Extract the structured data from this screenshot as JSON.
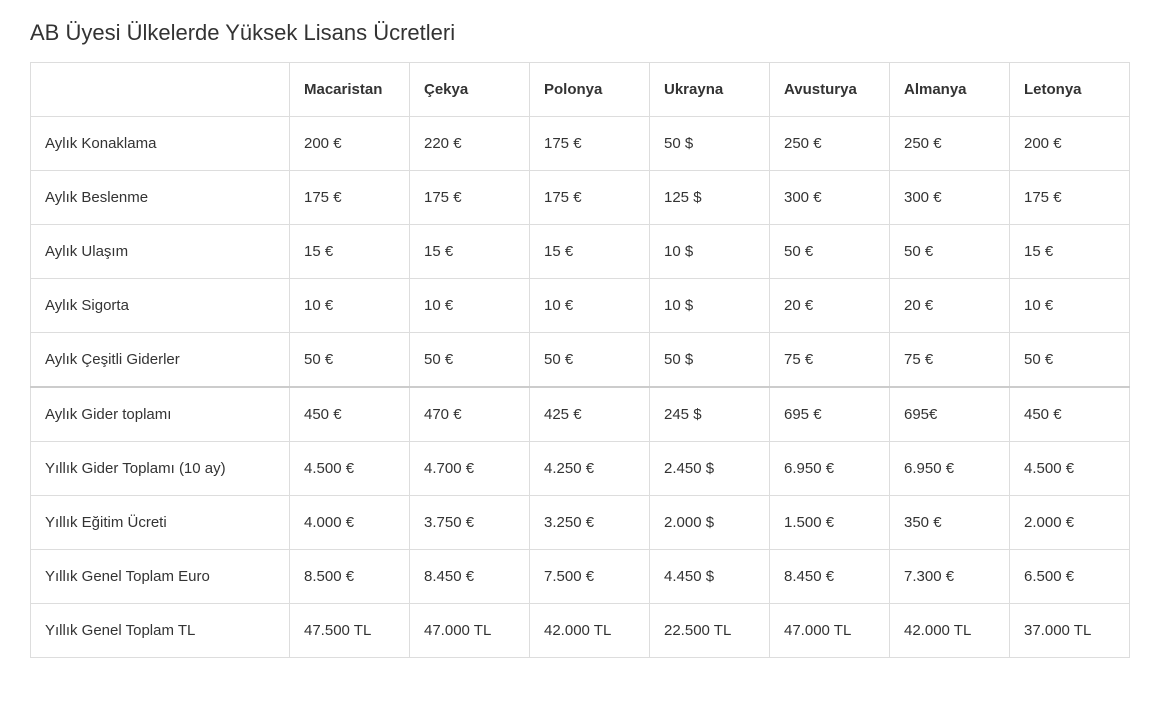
{
  "title": "AB Üyesi Ülkelerde Yüksek Lisans Ücretleri",
  "table": {
    "type": "table",
    "background_color": "#ffffff",
    "border_color": "#dddddd",
    "header_font_weight": "700",
    "cell_font_size": 15,
    "columns": [
      "",
      "Macaristan",
      "Çekya",
      "Polonya",
      "Ukrayna",
      "Avusturya",
      "Almanya",
      "Letonya"
    ],
    "row_labels": [
      "Aylık Konaklama",
      "Aylık Beslenme",
      "Aylık Ulaşım",
      "Aylık Sigorta",
      "Aylık Çeşitli Giderler",
      "Aylık Gider toplamı",
      "Yıllık Gider Toplamı (10 ay)",
      "Yıllık Eğitim Ücreti",
      "Yıllık Genel Toplam Euro",
      "Yıllık Genel Toplam TL"
    ],
    "rows": [
      [
        "200 €",
        "220 €",
        "175 €",
        "50  $",
        "250 €",
        "250 €",
        "200 €"
      ],
      [
        "175 €",
        "175 €",
        "175 €",
        "125 $",
        "300 €",
        "300 €",
        "175 €"
      ],
      [
        "15 €",
        "15 €",
        "15 €",
        "10 $",
        "50 €",
        "50 €",
        "15 €"
      ],
      [
        "10 €",
        "10 €",
        "10 €",
        "10 $",
        "20 €",
        "20 €",
        "10 €"
      ],
      [
        "50 €",
        "50 €",
        "50 €",
        "50 $",
        "75 €",
        "75 €",
        "50 €"
      ],
      [
        "450 €",
        "470 €",
        "425 €",
        "245 $",
        "695 €",
        "695€",
        "450 €"
      ],
      [
        "4.500 €",
        "4.700 €",
        "4.250 €",
        "2.450 $",
        "6.950 €",
        "6.950 €",
        "4.500 €"
      ],
      [
        "4.000 €",
        "3.750 €",
        "3.250 €",
        "2.000 $",
        "1.500 €",
        "350 €",
        "2.000 €"
      ],
      [
        "8.500 €",
        "8.450 €",
        "7.500 €",
        "4.450  $",
        "8.450 €",
        "7.300 €",
        "6.500 €"
      ],
      [
        "47.500 TL",
        "47.000 TL",
        "42.000 TL",
        "22.500 TL",
        "47.000 TL",
        "42.000 TL",
        "37.000 TL"
      ]
    ],
    "section_breaks_after_row": [
      4
    ]
  }
}
